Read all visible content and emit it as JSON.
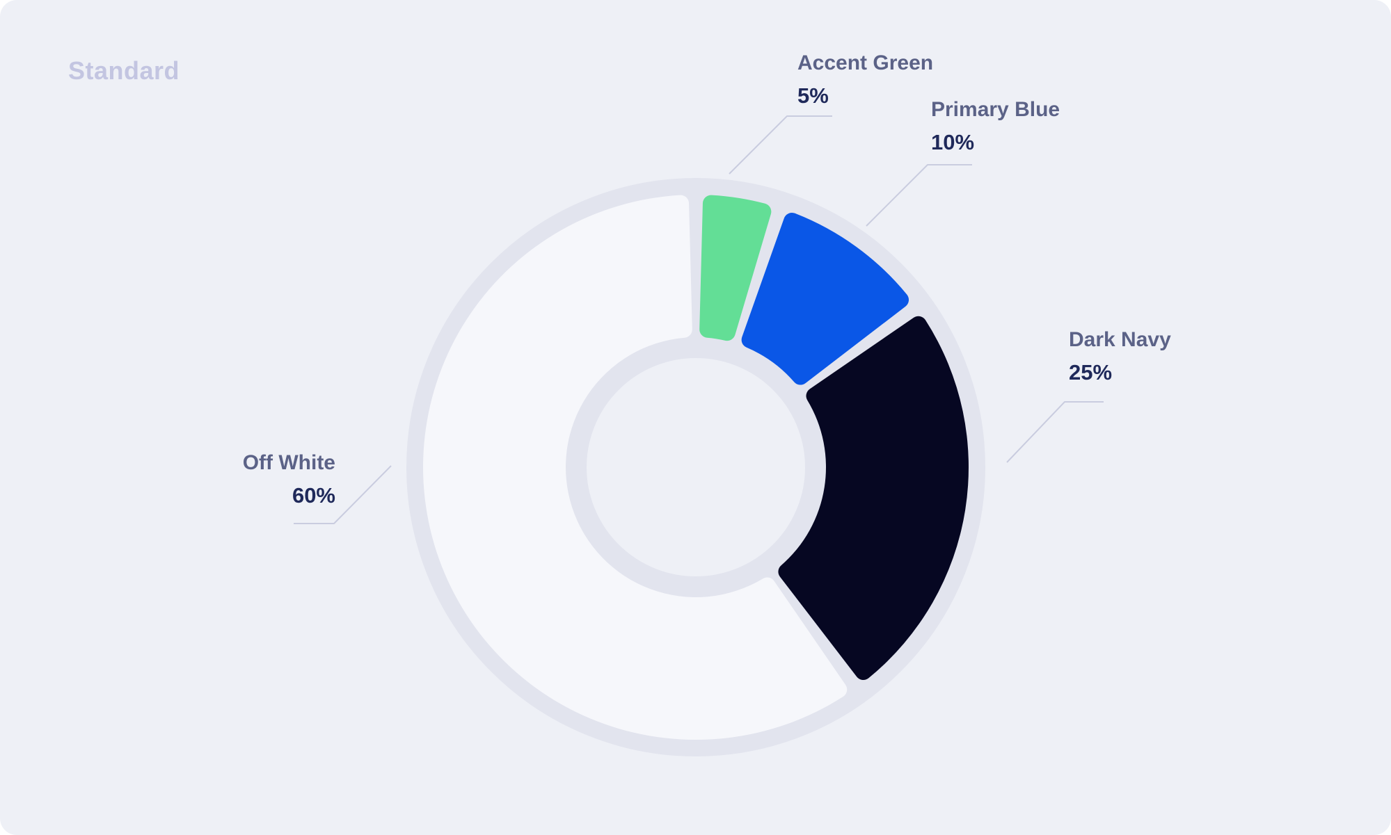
{
  "card": {
    "title": "Standard",
    "background": "#EEF0F6",
    "title_color": "#C3C5E1"
  },
  "chart_data": {
    "type": "pie",
    "subtype": "donut",
    "title": "Standard",
    "categories": [
      "Accent Green",
      "Primary Blue",
      "Dark Navy",
      "Off White"
    ],
    "values": [
      5,
      10,
      25,
      60
    ],
    "unit": "%",
    "slice_colors": [
      "#63DE96",
      "#0A57E7",
      "#060722",
      "#F6F7FB"
    ],
    "start_angle_deg": 0,
    "direction": "clockwise",
    "track_color": "#E2E4EE",
    "label_name_color": "#5B6287",
    "label_value_color": "#1F295A",
    "leader_line_color": "#C9CCDF",
    "labels": [
      {
        "name": "Accent Green",
        "value": "5%"
      },
      {
        "name": "Primary Blue",
        "value": "10%"
      },
      {
        "name": "Dark Navy",
        "value": "25%"
      },
      {
        "name": "Off White",
        "value": "60%"
      }
    ]
  }
}
